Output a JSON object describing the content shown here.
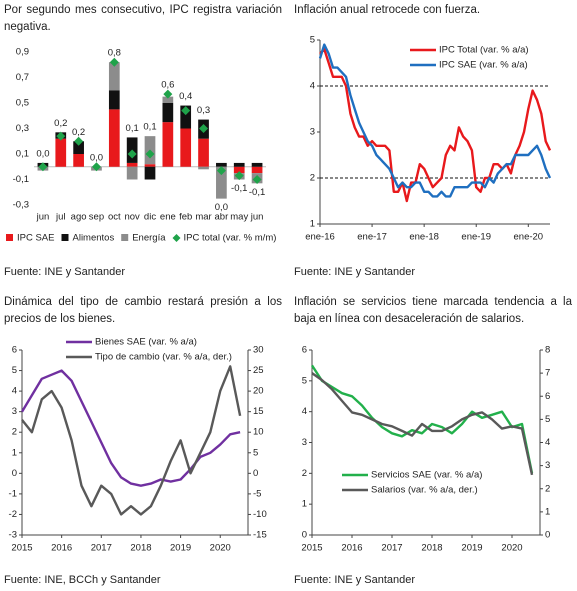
{
  "chart_data": [
    {
      "type": "bar",
      "stacked": true,
      "title": "Por segundo mes consecutivo, IPC registra variación negativa.",
      "source": "Fuente: INE y Santander",
      "categories": [
        "jun",
        "jul",
        "ago",
        "sep",
        "oct",
        "nov",
        "dic",
        "ene",
        "feb",
        "mar",
        "abr",
        "may",
        "jun"
      ],
      "series": [
        {
          "name": "IPC SAE",
          "color": "#e8191c",
          "values": [
            0.0,
            0.22,
            0.1,
            0.0,
            0.45,
            0.03,
            0.02,
            0.35,
            0.3,
            0.22,
            0.0,
            -0.05,
            -0.05
          ]
        },
        {
          "name": "Alimentos",
          "color": "#111111",
          "values": [
            0.03,
            0.05,
            0.1,
            0.0,
            0.15,
            0.2,
            -0.1,
            0.15,
            0.18,
            0.15,
            0.03,
            0.03,
            0.03
          ]
        },
        {
          "name": "Energía",
          "color": "#8c8c8c",
          "values": [
            -0.03,
            0.0,
            0.0,
            -0.03,
            0.22,
            -0.1,
            0.22,
            0.05,
            0.0,
            -0.02,
            -0.25,
            -0.05,
            -0.08
          ]
        },
        {
          "name": "IPC total (var. % m/m)",
          "color": "#1fa34a",
          "kind": "marker",
          "values": [
            0.0,
            0.24,
            0.2,
            0.0,
            0.82,
            0.1,
            0.1,
            0.57,
            0.44,
            0.3,
            -0.03,
            -0.07,
            -0.1
          ],
          "value_labels": [
            "0,0",
            "0,2",
            "0,2",
            "0,0",
            "0,8",
            "0,1",
            "0,1",
            "0,6",
            "0,4",
            "0,3",
            "0,0",
            "-0,1",
            "-0,1"
          ]
        }
      ],
      "ylim": [
        -0.3,
        0.9
      ],
      "yticks": [
        {
          "value": -0.3,
          "label": "-0,3"
        },
        {
          "value": -0.1,
          "label": "-0,1"
        },
        {
          "value": 0.1,
          "label": "0,1"
        },
        {
          "value": 0.3,
          "label": "0,3"
        },
        {
          "value": 0.5,
          "label": "0,5"
        },
        {
          "value": 0.7,
          "label": "0,7"
        },
        {
          "value": 0.9,
          "label": "0,9"
        }
      ],
      "legend": "bottom"
    },
    {
      "type": "line",
      "title": "Inflación anual retrocede con fuerza.",
      "source": "Fuente: INE y Santander",
      "categories": [
        "ene-16",
        null,
        null,
        null,
        null,
        null,
        null,
        null,
        null,
        null,
        null,
        null,
        "ene-17",
        null,
        null,
        null,
        null,
        null,
        null,
        null,
        null,
        null,
        null,
        null,
        "ene-18",
        null,
        null,
        null,
        null,
        null,
        null,
        null,
        null,
        null,
        null,
        null,
        "ene-19",
        null,
        null,
        null,
        null,
        null,
        null,
        null,
        null,
        null,
        null,
        null,
        "ene-20",
        null,
        null,
        null,
        null,
        null
      ],
      "series": [
        {
          "name": "IPC Total (var. % a/a)",
          "color": "#e8191c",
          "values": [
            4.7,
            4.8,
            4.5,
            4.2,
            4.2,
            4.2,
            4.0,
            3.4,
            3.1,
            2.9,
            2.9,
            2.7,
            2.8,
            2.7,
            2.7,
            2.7,
            2.6,
            1.7,
            1.7,
            1.9,
            1.5,
            1.9,
            1.9,
            2.3,
            2.2,
            2.0,
            1.8,
            1.9,
            2.0,
            2.5,
            2.7,
            2.6,
            3.1,
            2.9,
            2.8,
            2.6,
            1.8,
            1.7,
            2.0,
            2.0,
            2.3,
            2.3,
            2.2,
            2.3,
            2.1,
            2.5,
            2.7,
            3.0,
            3.5,
            3.9,
            3.7,
            3.4,
            2.8,
            2.6
          ]
        },
        {
          "name": "IPC SAE (var. % a/a)",
          "color": "#1f6fc0",
          "values": [
            4.6,
            4.9,
            4.7,
            4.4,
            4.4,
            4.3,
            4.2,
            3.8,
            3.5,
            3.2,
            3.0,
            2.8,
            2.7,
            2.5,
            2.4,
            2.3,
            2.2,
            2.0,
            1.8,
            1.9,
            1.8,
            1.8,
            1.9,
            1.9,
            1.7,
            1.7,
            1.6,
            1.6,
            1.7,
            1.6,
            1.6,
            1.8,
            1.8,
            1.8,
            1.8,
            1.9,
            1.9,
            1.9,
            1.8,
            2.0,
            1.9,
            2.1,
            2.2,
            2.3,
            2.3,
            2.5,
            2.5,
            2.5,
            2.5,
            2.6,
            2.7,
            2.5,
            2.2,
            2.0
          ]
        }
      ],
      "ylim": [
        1,
        5
      ],
      "yticks": [
        1,
        2,
        3,
        4,
        5
      ],
      "hlines": [
        2,
        4
      ],
      "legend": "upper-right"
    },
    {
      "type": "line",
      "title": "Dinámica del tipo de cambio restará presión a los precios de los bienes.",
      "source": "Fuente: INE, BCCh y Santander",
      "x": [
        2015,
        2015.25,
        2015.5,
        2015.75,
        2016,
        2016.25,
        2016.5,
        2016.75,
        2017,
        2017.25,
        2017.5,
        2017.75,
        2018,
        2018.25,
        2018.5,
        2018.75,
        2019,
        2019.25,
        2019.5,
        2019.75,
        2020,
        2020.25,
        2020.5
      ],
      "series": [
        {
          "name": "Bienes SAE (var. % a/a)",
          "color": "#7030a0",
          "values": [
            3.0,
            3.8,
            4.6,
            4.8,
            5.0,
            4.5,
            3.5,
            2.5,
            1.5,
            0.5,
            -0.2,
            -0.5,
            -0.6,
            -0.5,
            -0.3,
            -0.4,
            -0.3,
            0.2,
            0.8,
            1.0,
            1.4,
            1.9,
            2.0
          ]
        },
        {
          "name": "Tipo de cambio (var. % a/a, der.)",
          "color": "#595959",
          "axis": "y2",
          "values": [
            13,
            10,
            18,
            20,
            16,
            8,
            -3,
            -8,
            -3,
            -5,
            -10,
            -8,
            -10,
            -8,
            -3,
            3,
            8,
            0,
            5,
            10,
            20,
            26,
            14
          ]
        }
      ],
      "xlim": [
        2015,
        2020.7
      ],
      "xticks": [
        2015,
        2016,
        2017,
        2018,
        2019,
        2020
      ],
      "ylim": [
        -3,
        6
      ],
      "yticks": [
        -3,
        -2,
        -1,
        0,
        1,
        2,
        3,
        4,
        5,
        6
      ],
      "y2lim": [
        -15,
        30
      ],
      "y2ticks": [
        -15,
        -10,
        -5,
        0,
        5,
        10,
        15,
        20,
        25,
        30
      ],
      "legend": "upper-left"
    },
    {
      "type": "line",
      "title": "Inflación se servicios tiene marcada tendencia a la baja en línea con desaceleración de salarios.",
      "source": "Fuente: INE y Santander",
      "x": [
        2015,
        2015.25,
        2015.5,
        2015.75,
        2016,
        2016.25,
        2016.5,
        2016.75,
        2017,
        2017.25,
        2017.5,
        2017.75,
        2018,
        2018.25,
        2018.5,
        2018.75,
        2019,
        2019.25,
        2019.5,
        2019.75,
        2020,
        2020.25,
        2020.5
      ],
      "series": [
        {
          "name": "Servicios SAE (var. % a/a)",
          "color": "#22b04b",
          "values": [
            5.5,
            5.0,
            4.8,
            4.6,
            4.5,
            4.2,
            3.8,
            3.5,
            3.3,
            3.2,
            3.4,
            3.3,
            3.6,
            3.5,
            3.3,
            3.6,
            4.0,
            3.8,
            3.9,
            4.0,
            3.5,
            3.6,
            2.0
          ]
        },
        {
          "name": "Salarios (var. % a/a, der.)",
          "color": "#595959",
          "axis": "y2",
          "values": [
            7.0,
            6.7,
            6.3,
            5.8,
            5.3,
            5.2,
            5.0,
            4.8,
            4.7,
            4.5,
            4.3,
            4.8,
            4.5,
            4.5,
            4.7,
            5.0,
            5.2,
            5.3,
            5.0,
            4.6,
            4.7,
            4.6,
            2.6
          ]
        }
      ],
      "xlim": [
        2015,
        2020.7
      ],
      "xticks": [
        2015,
        2016,
        2017,
        2018,
        2019,
        2020
      ],
      "ylim": [
        0,
        6
      ],
      "yticks": [
        0,
        1,
        2,
        3,
        4,
        5,
        6
      ],
      "y2lim": [
        0,
        8
      ],
      "y2ticks": [
        0,
        1,
        2,
        3,
        4,
        5,
        6,
        7,
        8
      ],
      "legend": "lower-left"
    }
  ]
}
